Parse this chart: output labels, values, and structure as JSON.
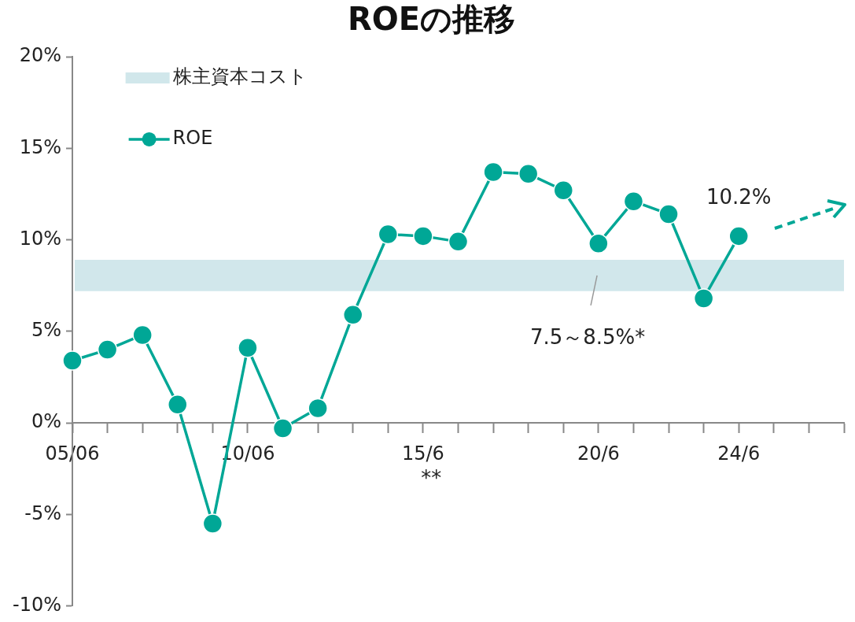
{
  "chart_data": {
    "type": "line",
    "title": "ROEの推移",
    "categories": [
      "05/06",
      null,
      null,
      null,
      null,
      "10/06",
      null,
      null,
      null,
      null,
      "15/6",
      null,
      null,
      null,
      null,
      "20/6",
      null,
      null,
      null,
      "24/6",
      null,
      null,
      null
    ],
    "series": [
      {
        "name": "ROE",
        "color": "#00a796",
        "values": [
          3.4,
          4.0,
          4.8,
          1.0,
          -5.5,
          4.1,
          -0.3,
          0.8,
          5.9,
          10.3,
          10.2,
          9.9,
          13.7,
          13.6,
          12.7,
          9.8,
          12.1,
          11.4,
          6.8,
          10.2,
          null,
          null,
          null
        ]
      }
    ],
    "ylim": [
      -10,
      20
    ],
    "yticks": [
      {
        "value": -10,
        "label": "-10%"
      },
      {
        "value": -5,
        "label": "-5%"
      },
      {
        "value": 0,
        "label": "0%"
      },
      {
        "value": 5,
        "label": "5%"
      },
      {
        "value": 10,
        "label": "10%"
      },
      {
        "value": 15,
        "label": "15%"
      },
      {
        "value": 20,
        "label": "20%"
      }
    ],
    "bands": [
      {
        "axis": "y",
        "from": 7.2,
        "to": 8.9,
        "label": "株主資本コスト",
        "color": "#d1e7eb"
      }
    ],
    "annotations": [
      {
        "text": "10.2%",
        "x": "24/6",
        "y": 10.2
      },
      "7.5～8.5%*",
      "**"
    ],
    "legend": "top left",
    "marker": "circle",
    "line_style": "solid",
    "grid": false
  }
}
